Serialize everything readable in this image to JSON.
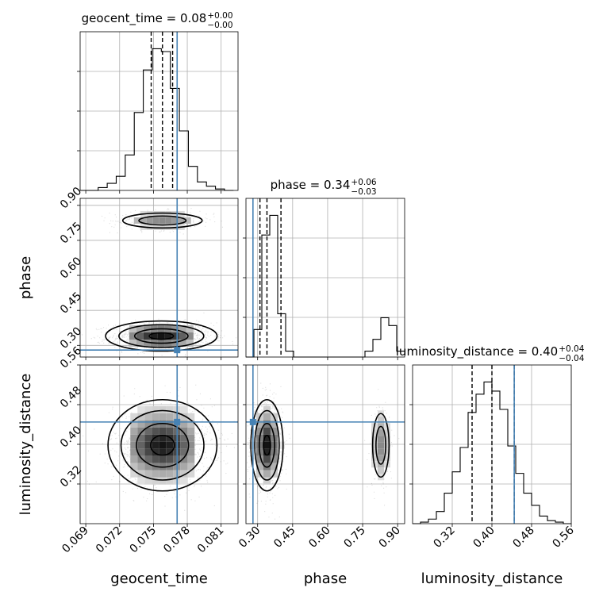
{
  "chart_data": {
    "type": "corner",
    "parameters": [
      "geocent_time",
      "phase",
      "luminosity_distance"
    ],
    "truths": {
      "geocent_time": 0.0771,
      "phase": 0.28,
      "luminosity_distance": 0.445
    },
    "truth_color": "#4682b4",
    "axes": {
      "geocent_time": {
        "range": [
          0.0685,
          0.0825
        ],
        "ticks": [
          0.069,
          0.072,
          0.075,
          0.078,
          0.081
        ],
        "tick_labels": [
          "0.069",
          "0.072",
          "0.075",
          "0.078",
          "0.081"
        ]
      },
      "phase": {
        "range": [
          0.25,
          0.93
        ],
        "ticks": [
          0.3,
          0.45,
          0.6,
          0.75,
          0.9
        ],
        "tick_labels": [
          "0.30",
          "0.45",
          "0.60",
          "0.75",
          "0.90"
        ]
      },
      "luminosity_distance": {
        "range": [
          0.24,
          0.56
        ],
        "ticks": [
          0.32,
          0.4,
          0.48,
          0.56
        ],
        "tick_labels": [
          "0.32",
          "0.40",
          "0.48",
          "0.56"
        ]
      }
    },
    "titles": [
      {
        "param": "geocent_time",
        "label": "geocent_time = 0.08",
        "sup": "+0.00",
        "sub": "−0.00"
      },
      {
        "param": "phase",
        "label": "phase = 0.34",
        "sup": "+0.06",
        "sub": "−0.03"
      },
      {
        "param": "luminosity_distance",
        "label": "luminosity_distance = 0.40",
        "sup": "+0.04",
        "sub": "−0.04"
      }
    ],
    "histograms": {
      "geocent_time": {
        "bin_edges": [
          0.0685,
          0.0693,
          0.0701,
          0.0709,
          0.0717,
          0.0725,
          0.0733,
          0.0741,
          0.0749,
          0.0757,
          0.0765,
          0.0773,
          0.0781,
          0.0789,
          0.0797,
          0.0805,
          0.0813,
          0.0821
        ],
        "counts": [
          0,
          0,
          2,
          5,
          10,
          25,
          55,
          85,
          100,
          98,
          72,
          42,
          17,
          6,
          3,
          1,
          0
        ],
        "quantiles": [
          0.0748,
          0.0758,
          0.0767
        ]
      },
      "phase": {
        "bin_edges": [
          0.25,
          0.284,
          0.318,
          0.352,
          0.386,
          0.42,
          0.454,
          0.488,
          0.522,
          0.556,
          0.59,
          0.624,
          0.658,
          0.692,
          0.726,
          0.76,
          0.794,
          0.828,
          0.862,
          0.896,
          0.93
        ],
        "counts": [
          0,
          14,
          62,
          72,
          22,
          3,
          0,
          0,
          0,
          0,
          0,
          0,
          0,
          0,
          0,
          3,
          9,
          20,
          16,
          3
        ],
        "quantiles": [
          0.31,
          0.34,
          0.4
        ]
      },
      "luminosity_distance": {
        "bin_edges": [
          0.24,
          0.256,
          0.272,
          0.288,
          0.304,
          0.32,
          0.336,
          0.352,
          0.368,
          0.384,
          0.4,
          0.416,
          0.432,
          0.448,
          0.464,
          0.48,
          0.496,
          0.512,
          0.528,
          0.544,
          0.56
        ],
        "counts": [
          0,
          1,
          3,
          8,
          20,
          34,
          50,
          73,
          85,
          93,
          87,
          75,
          51,
          33,
          20,
          12,
          5,
          2,
          1,
          0
        ],
        "quantiles": [
          0.36,
          0.4,
          0.445
        ]
      }
    },
    "densities": [
      {
        "x": "geocent_time",
        "y": "phase",
        "modes": [
          {
            "cx": 0.0757,
            "cy": 0.34,
            "sx": 0.00215,
            "sy": 0.028,
            "w": 0.82
          },
          {
            "cx": 0.0758,
            "cy": 0.835,
            "sx": 0.0022,
            "sy": 0.02,
            "w": 0.18
          }
        ]
      },
      {
        "x": "geocent_time",
        "y": "luminosity_distance",
        "modes": [
          {
            "cx": 0.0758,
            "cy": 0.398,
            "sx": 0.0021,
            "sy": 0.04,
            "w": 1.0
          }
        ]
      },
      {
        "x": "phase",
        "y": "luminosity_distance",
        "modes": [
          {
            "cx": 0.34,
            "cy": 0.398,
            "sx": 0.03,
            "sy": 0.04,
            "w": 0.82
          },
          {
            "cx": 0.828,
            "cy": 0.398,
            "sx": 0.022,
            "sy": 0.04,
            "w": 0.18
          }
        ]
      }
    ],
    "axis_labels": {
      "geocent_time": "geocent_time",
      "phase": "phase",
      "luminosity_distance": "luminosity_distance"
    }
  }
}
